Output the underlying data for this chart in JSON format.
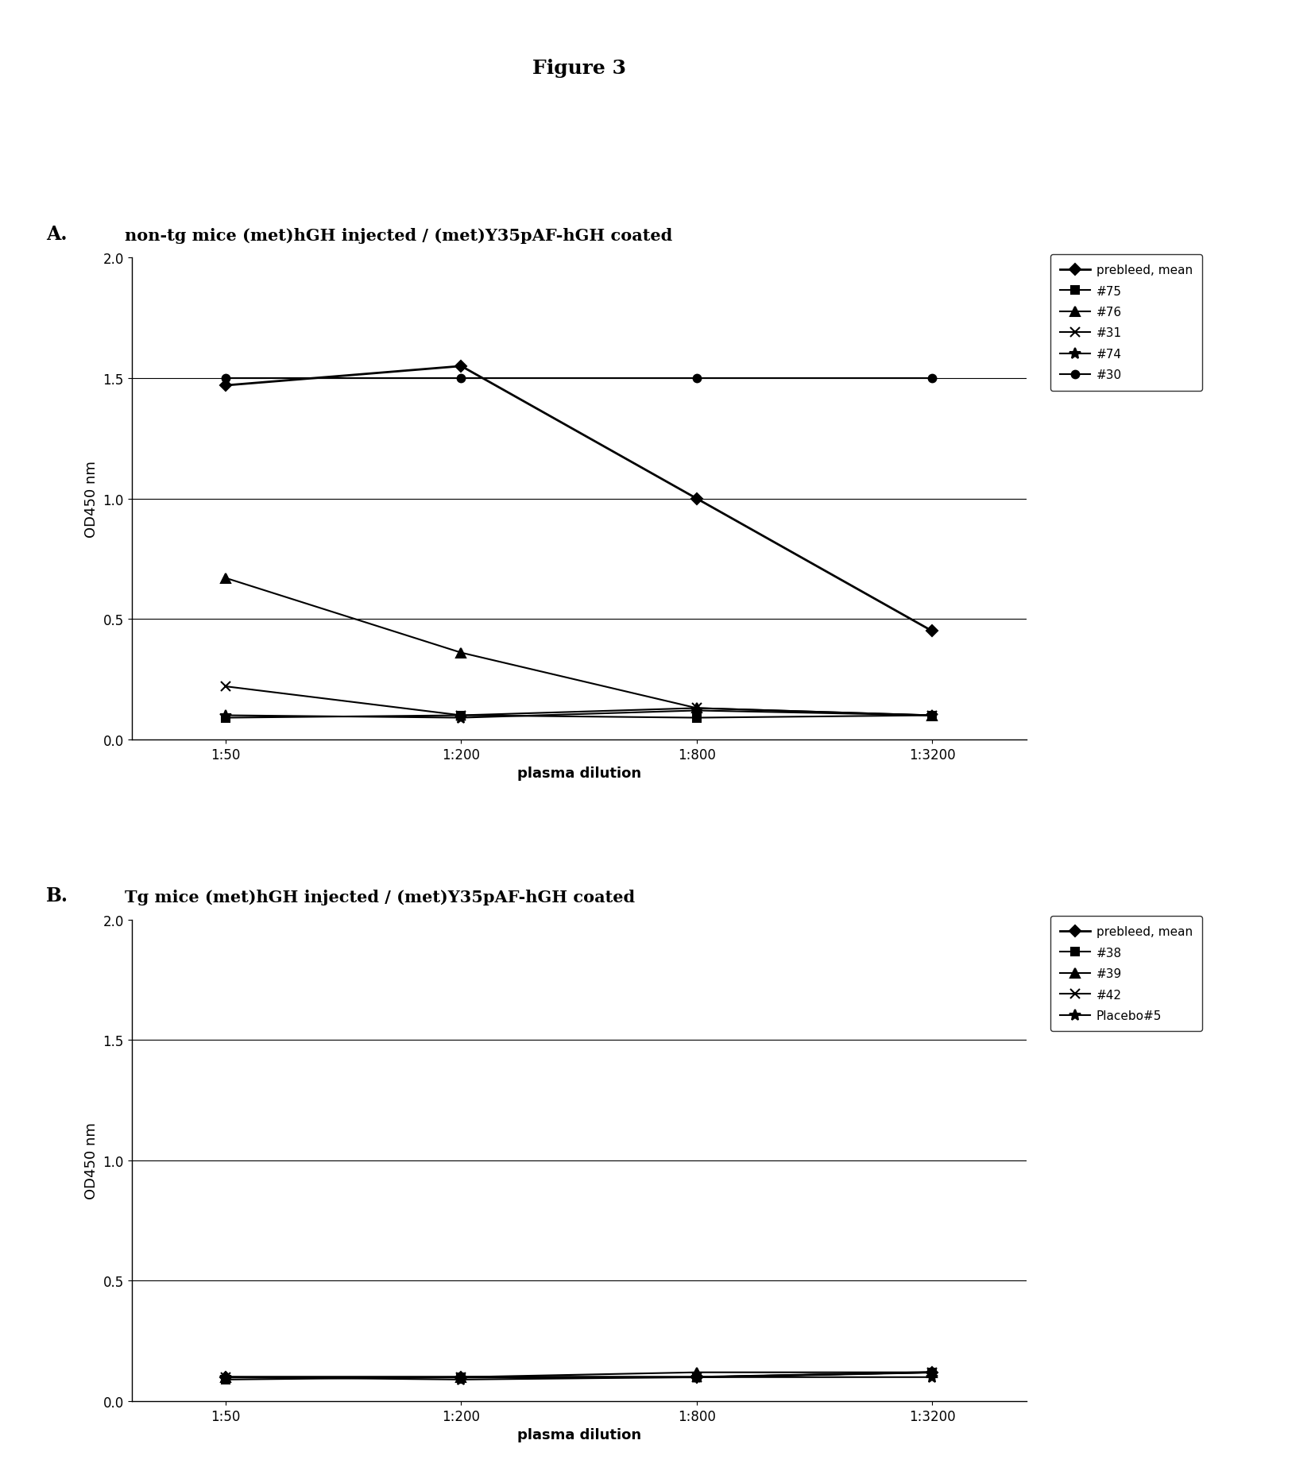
{
  "figure_title": "Figure 3",
  "panel_A_label": "A.",
  "panel_A_title": "non-tg mice (met)hGH injected / (met)Y35pAF-hGH coated",
  "panel_B_label": "B.",
  "panel_B_title": "Tg mice (met)hGH injected / (met)Y35pAF-hGH coated",
  "xlabel": "plasma dilution",
  "ylabel": "OD450 nm",
  "xtick_labels": [
    "1:50",
    "1:200",
    "1:800",
    "1:3200"
  ],
  "x_positions": [
    0,
    1,
    2,
    3
  ],
  "ylim": [
    0.0,
    2.0
  ],
  "yticks": [
    0.0,
    0.5,
    1.0,
    1.5,
    2.0
  ],
  "panel_A": {
    "series": [
      {
        "label": "prebleed, mean",
        "marker": "D",
        "values": [
          1.47,
          1.55,
          1.0,
          0.45
        ],
        "linewidth": 2.0,
        "markersize": 7
      },
      {
        "label": "#75",
        "marker": "s",
        "values": [
          0.09,
          0.1,
          0.09,
          0.1
        ],
        "linewidth": 1.5,
        "markersize": 7
      },
      {
        "label": "#76",
        "marker": "^",
        "values": [
          0.67,
          0.36,
          0.13,
          0.1
        ],
        "linewidth": 1.5,
        "markersize": 8
      },
      {
        "label": "#31",
        "marker": "x",
        "values": [
          0.22,
          0.1,
          0.13,
          0.1
        ],
        "linewidth": 1.5,
        "markersize": 8
      },
      {
        "label": "#74",
        "marker": "*",
        "values": [
          0.1,
          0.09,
          0.12,
          0.1
        ],
        "linewidth": 1.5,
        "markersize": 10
      },
      {
        "label": "#30",
        "marker": "o",
        "values": [
          1.5,
          1.5,
          1.5,
          1.5
        ],
        "linewidth": 1.5,
        "markersize": 7
      }
    ],
    "hlines": [
      0.5,
      1.0,
      1.5
    ]
  },
  "panel_B": {
    "series": [
      {
        "label": "prebleed, mean",
        "marker": "D",
        "values": [
          0.1,
          0.1,
          0.1,
          0.12
        ],
        "linewidth": 2.0,
        "markersize": 7
      },
      {
        "label": "#38",
        "marker": "s",
        "values": [
          0.09,
          0.1,
          0.1,
          0.12
        ],
        "linewidth": 1.5,
        "markersize": 7
      },
      {
        "label": "#39",
        "marker": "^",
        "values": [
          0.1,
          0.1,
          0.12,
          0.12
        ],
        "linewidth": 1.5,
        "markersize": 8
      },
      {
        "label": "#42",
        "marker": "x",
        "values": [
          0.1,
          0.1,
          0.1,
          0.12
        ],
        "linewidth": 1.5,
        "markersize": 8
      },
      {
        "label": "Placebo#5",
        "marker": "*",
        "values": [
          0.1,
          0.09,
          0.1,
          0.1
        ],
        "linewidth": 1.5,
        "markersize": 10
      }
    ],
    "hlines": [
      0.5,
      1.0,
      1.5
    ]
  },
  "background_color": "#ffffff",
  "line_color": "#000000",
  "fs_fig_title": 18,
  "fs_panel_label": 17,
  "fs_subtitle": 15,
  "fs_axis_label": 13,
  "fs_tick": 12,
  "fs_legend": 11
}
